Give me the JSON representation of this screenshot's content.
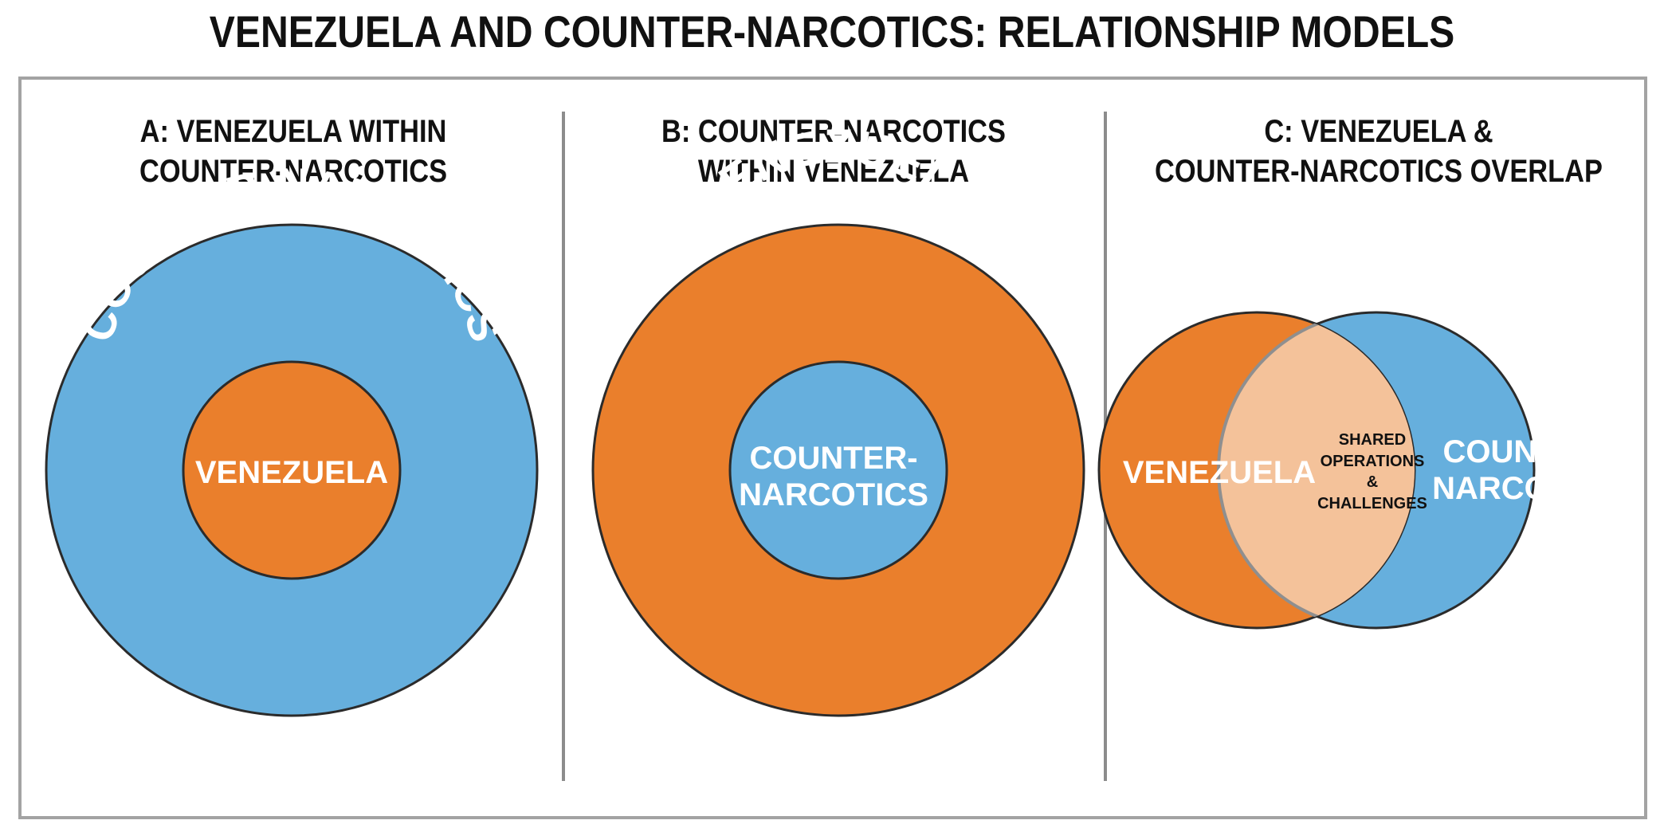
{
  "title": "VENEZUELA AND COUNTER-NARCOTICS:  RELATIONSHIP MODELS",
  "colors": {
    "orange": "#ea7f2c",
    "blue": "#66afdd",
    "overlap": "#f4c29a",
    "outline": "#2b2b2b",
    "label_white": "#ffffff",
    "label_dark": "#111111"
  },
  "panels": [
    {
      "title_lines": [
        "A: VENEZUELA WITHIN",
        "COUNTER-NARCOTICS"
      ],
      "outer_label": "COUNTER-NARCOTICS",
      "inner_label": "VENEZUELA"
    },
    {
      "title_lines": [
        "B: COUNTER-NARCOTICS",
        "WITHIN VENEZUELA"
      ],
      "outer_label": "VENEZUELA",
      "inner_label_lines": [
        "COUNTER-",
        "NARCOTICS"
      ]
    },
    {
      "title_lines": [
        "C: VENEZUELA &",
        "COUNTER-NARCOTICS OVERLAP"
      ],
      "left_label": "VENEZUELA",
      "right_label_lines": [
        "COUNTER-",
        "NARCOTICS"
      ],
      "overlap_label_lines": [
        "SHARED",
        "OPERATIONS",
        "&",
        "CHALLENGES"
      ]
    }
  ]
}
